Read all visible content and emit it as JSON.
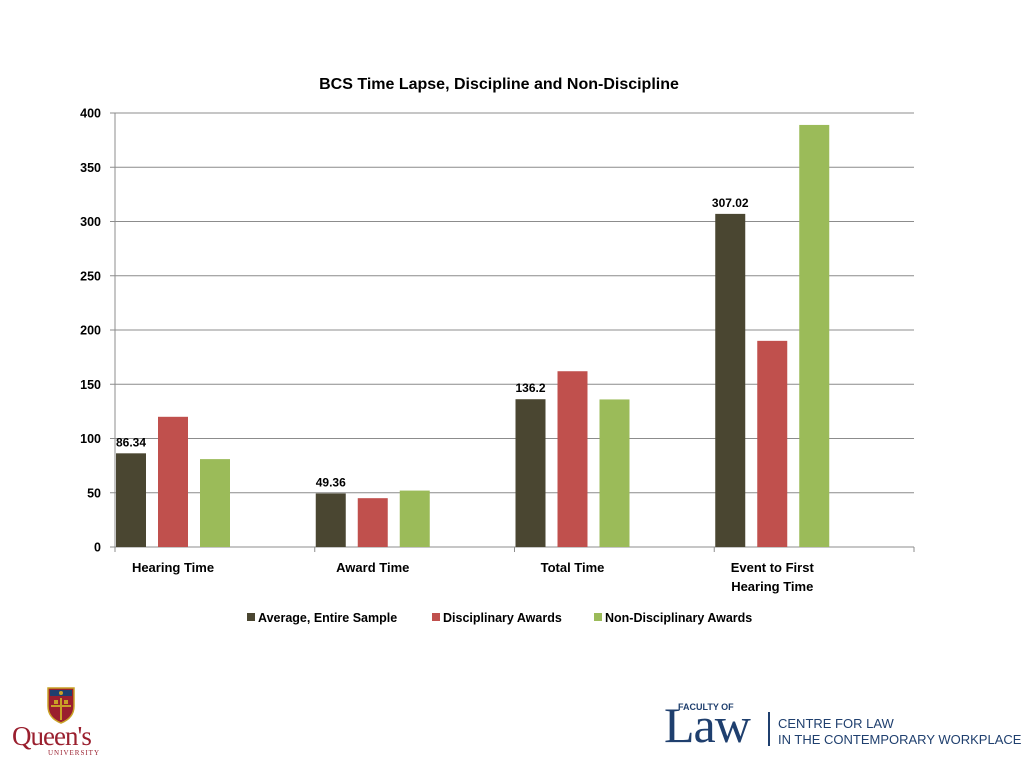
{
  "chart_data": {
    "type": "bar",
    "title": "BCS Time Lapse, Discipline and Non-Discipline",
    "xlabel": "",
    "ylabel": "",
    "ylim": [
      0,
      400
    ],
    "ytick_step": 50,
    "ytick_labels": [
      "0",
      "50",
      "100",
      "150",
      "200",
      "250",
      "300",
      "350",
      "400"
    ],
    "grid": true,
    "legend_position": "bottom",
    "categories": [
      [
        "Hearing Time"
      ],
      [
        "Award Time"
      ],
      [
        "Total Time"
      ],
      [
        "Event to First",
        "Hearing Time"
      ]
    ],
    "series": [
      {
        "name": "Average, Entire Sample",
        "color": "#4a4631",
        "values": [
          86.34,
          49.36,
          136.2,
          307.02
        ],
        "data_labels": [
          "86.34",
          "49.36",
          "136.2",
          "307.02"
        ]
      },
      {
        "name": "Disciplinary Awards",
        "color": "#c0504d",
        "values": [
          120,
          45,
          162,
          190
        ],
        "data_labels": [
          "",
          "",
          "",
          ""
        ]
      },
      {
        "name": "Non-Disciplinary Awards",
        "color": "#9bbb59",
        "values": [
          81,
          52,
          136,
          389
        ],
        "data_labels": [
          "",
          "",
          "",
          ""
        ]
      }
    ]
  },
  "logos": {
    "queens": {
      "word": "Queen's",
      "sub": "UNIVERSITY"
    },
    "law": {
      "faculty_of": "FACULTY OF",
      "law": "Law",
      "centre_line1": "CENTRE FOR LAW",
      "centre_line2": "IN THE CONTEMPORARY WORKPLACE"
    }
  }
}
